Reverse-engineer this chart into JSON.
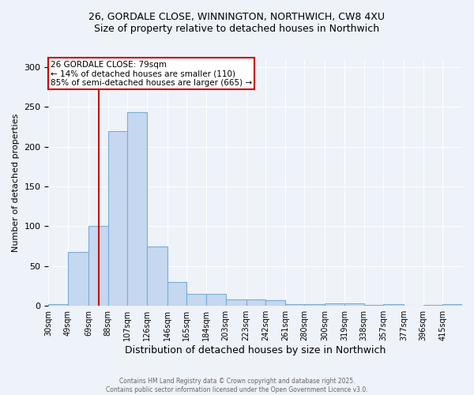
{
  "title_line1": "26, GORDALE CLOSE, WINNINGTON, NORTHWICH, CW8 4XU",
  "title_line2": "Size of property relative to detached houses in Northwich",
  "xlabel": "Distribution of detached houses by size in Northwich",
  "ylabel": "Number of detached properties",
  "bin_labels": [
    "30sqm",
    "49sqm",
    "69sqm",
    "88sqm",
    "107sqm",
    "126sqm",
    "146sqm",
    "165sqm",
    "184sqm",
    "203sqm",
    "223sqm",
    "242sqm",
    "261sqm",
    "280sqm",
    "300sqm",
    "319sqm",
    "338sqm",
    "357sqm",
    "377sqm",
    "396sqm",
    "415sqm"
  ],
  "bin_edges": [
    30,
    49,
    69,
    88,
    107,
    126,
    146,
    165,
    184,
    203,
    223,
    242,
    261,
    280,
    300,
    319,
    338,
    357,
    377,
    396,
    415
  ],
  "bar_heights": [
    2,
    68,
    100,
    220,
    243,
    75,
    30,
    15,
    15,
    8,
    8,
    7,
    2,
    2,
    3,
    3,
    1,
    2,
    0,
    1,
    2
  ],
  "bar_color": "#c5d8f0",
  "bar_edge_color": "#7aadd4",
  "red_line_x": 79,
  "annotation_text_line1": "26 GORDALE CLOSE: 79sqm",
  "annotation_text_line2": "← 14% of detached houses are smaller (110)",
  "annotation_text_line3": "85% of semi-detached houses are larger (665) →",
  "annotation_box_facecolor": "#ffffff",
  "annotation_box_edgecolor": "#cc0000",
  "ylim": [
    0,
    310
  ],
  "yticks": [
    0,
    50,
    100,
    150,
    200,
    250,
    300
  ],
  "background_color": "#eef2f9",
  "grid_color": "#ffffff",
  "footer_line1": "Contains HM Land Registry data © Crown copyright and database right 2025.",
  "footer_line2": "Contains public sector information licensed under the Open Government Licence v3.0."
}
